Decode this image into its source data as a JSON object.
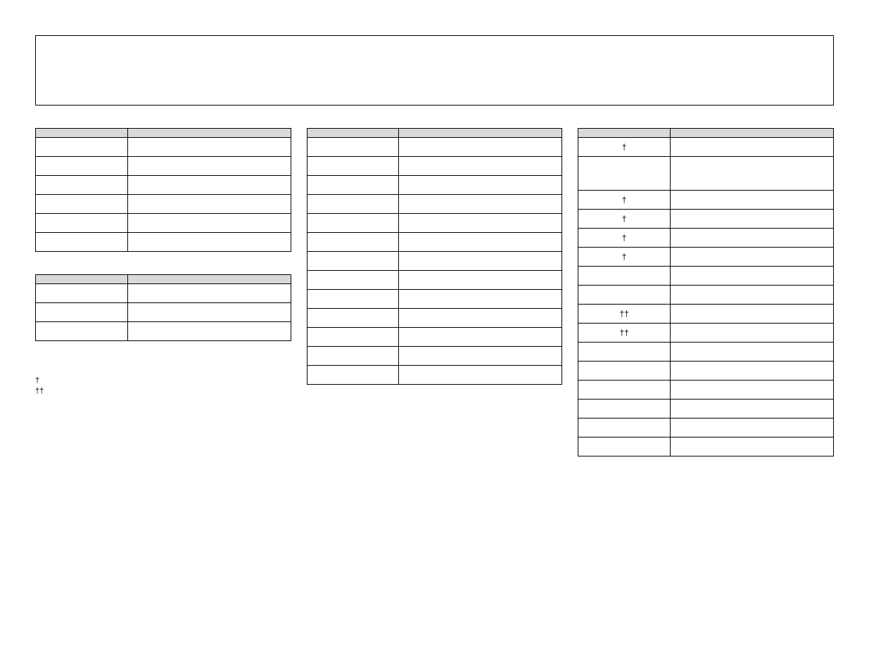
{
  "colors": {
    "header_bg": "#d9d9d9",
    "border": "#000000",
    "background": "#ffffff"
  },
  "section_labels": {
    "table1": "",
    "table2": "",
    "table3": "",
    "table4": ""
  },
  "table_headers": {
    "col1": "",
    "col2": ""
  },
  "table1": {
    "rows": [
      {
        "num": "",
        "desc": ""
      },
      {
        "num": "",
        "desc": ""
      },
      {
        "num": "",
        "desc": ""
      },
      {
        "num": "",
        "desc": ""
      },
      {
        "num": "",
        "desc": ""
      },
      {
        "num": "",
        "desc": ""
      }
    ]
  },
  "table2": {
    "rows": [
      {
        "num": "",
        "desc": ""
      },
      {
        "num": "",
        "desc": ""
      },
      {
        "num": "",
        "desc": ""
      }
    ]
  },
  "table3": {
    "rows": [
      {
        "num": "",
        "desc": ""
      },
      {
        "num": "",
        "desc": ""
      },
      {
        "num": "",
        "desc": ""
      },
      {
        "num": "",
        "desc": ""
      },
      {
        "num": "",
        "desc": ""
      },
      {
        "num": "",
        "desc": ""
      },
      {
        "num": "",
        "desc": ""
      },
      {
        "num": "",
        "desc": ""
      },
      {
        "num": "",
        "desc": ""
      },
      {
        "num": "",
        "desc": ""
      },
      {
        "num": "",
        "desc": ""
      },
      {
        "num": "",
        "desc": ""
      },
      {
        "num": "",
        "desc": ""
      }
    ]
  },
  "table4": {
    "rows": [
      {
        "num": "†",
        "desc": ""
      },
      {
        "num": "",
        "desc": ""
      },
      {
        "num": "†",
        "desc": ""
      },
      {
        "num": "†",
        "desc": ""
      },
      {
        "num": "†",
        "desc": ""
      },
      {
        "num": "†",
        "desc": ""
      },
      {
        "num": "",
        "desc": ""
      },
      {
        "num": "",
        "desc": ""
      },
      {
        "num": "††",
        "desc": ""
      },
      {
        "num": "††",
        "desc": ""
      },
      {
        "num": "",
        "desc": ""
      },
      {
        "num": "",
        "desc": ""
      },
      {
        "num": "",
        "desc": ""
      },
      {
        "num": "",
        "desc": ""
      },
      {
        "num": "",
        "desc": ""
      },
      {
        "num": "",
        "desc": ""
      }
    ],
    "row_heights": {
      "1": "tall"
    }
  },
  "footnotes": {
    "dagger": "†",
    "double_dagger": "††",
    "note1": "",
    "note2": ""
  }
}
